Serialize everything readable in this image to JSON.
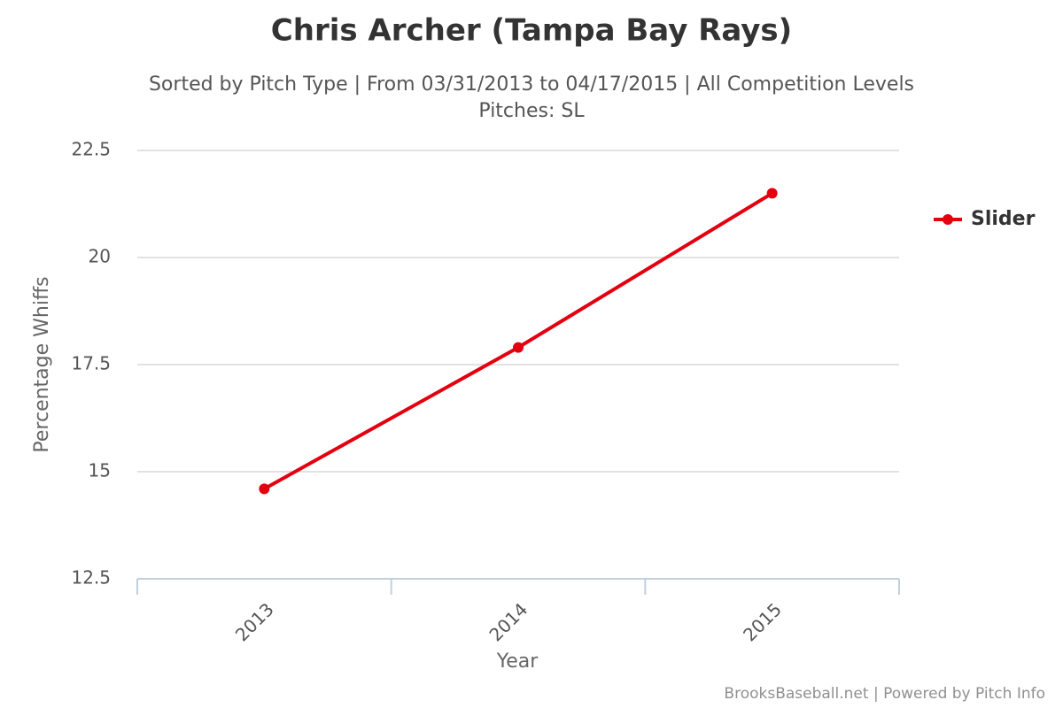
{
  "chart_data": {
    "type": "line",
    "title": "Chris Archer (Tampa Bay Rays)",
    "subtitle": [
      "Sorted by Pitch Type | From 03/31/2013 to 04/17/2015 | All Competition Levels",
      "Pitches: SL"
    ],
    "x_label": "Year",
    "y_label": "Percentage Whiffs",
    "categories": [
      "2013",
      "2014",
      "2015"
    ],
    "series": [
      {
        "name": "Slider",
        "color": "#e3000f",
        "values": [
          14.6,
          17.9,
          21.5
        ]
      }
    ],
    "ylim": [
      12.5,
      22.5
    ],
    "yticks": [
      12.5,
      15,
      17.5,
      20,
      22.5
    ],
    "grid": true,
    "legend": "right",
    "credits": "BrooksBaseball.net | Powered by Pitch Info"
  }
}
